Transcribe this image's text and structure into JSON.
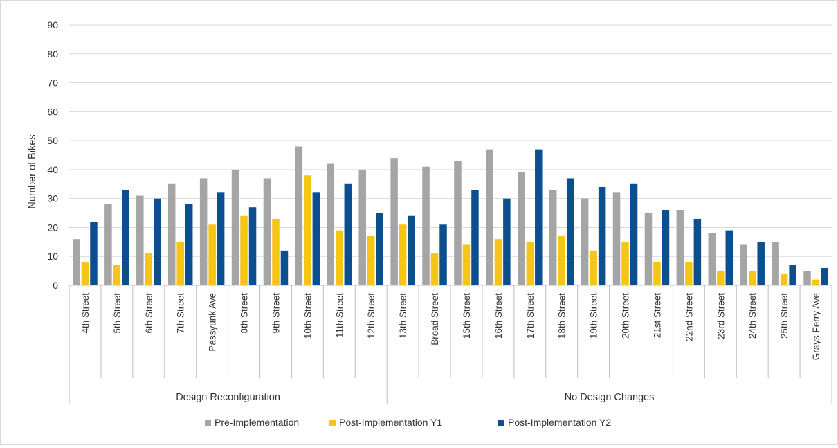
{
  "chart_data": {
    "type": "bar",
    "ylabel": "Number of Bikes",
    "ylim": [
      0,
      90
    ],
    "yticks": [
      0,
      10,
      20,
      30,
      40,
      50,
      60,
      70,
      80,
      90
    ],
    "grid": true,
    "legend_position": "bottom",
    "groups": [
      {
        "label": "Design Reconfiguration",
        "count": 10
      },
      {
        "label": "No Design Changes",
        "count": 14
      }
    ],
    "categories": [
      "4th Street",
      "5th Street",
      "6th Street",
      "7th Street",
      "Passyunk Ave",
      "8th Street",
      "9th Street",
      "10th Street",
      "11th Street",
      "12th Street",
      "13th Street",
      "Broad Street",
      "15th Street",
      "16th Street",
      "17th Street",
      "18th Street",
      "19th Street",
      "20th Street",
      "21st Street",
      "22nd Street",
      "23rd Street",
      "24th Street",
      "25th Street",
      "Grays Ferry Ave"
    ],
    "series": [
      {
        "name": "Pre-Implementation",
        "color": "#a5a5a5",
        "values": [
          16,
          28,
          31,
          35,
          37,
          40,
          37,
          48,
          42,
          40,
          44,
          41,
          43,
          47,
          39,
          33,
          30,
          32,
          25,
          26,
          18,
          14,
          15,
          5
        ]
      },
      {
        "name": "Post-Implementation Y1",
        "color": "#f5c518",
        "values": [
          8,
          7,
          11,
          15,
          21,
          24,
          23,
          38,
          19,
          17,
          21,
          11,
          14,
          16,
          15,
          17,
          12,
          15,
          8,
          8,
          5,
          5,
          4,
          2
        ]
      },
      {
        "name": "Post-Implementation Y2",
        "color": "#0b4f8f",
        "values": [
          22,
          33,
          30,
          28,
          32,
          27,
          12,
          32,
          35,
          25,
          24,
          21,
          33,
          30,
          47,
          37,
          34,
          35,
          26,
          23,
          19,
          15,
          7,
          6
        ]
      }
    ]
  }
}
